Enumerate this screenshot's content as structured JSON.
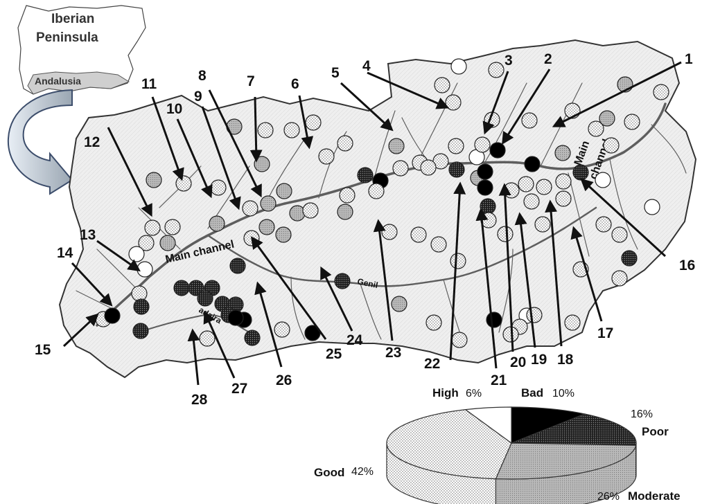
{
  "inset": {
    "title_line1": "Iberian",
    "title_line2": "Peninsula",
    "region": "Andalusia"
  },
  "map_labels": {
    "main_channel_left": "Main channel",
    "main_channel_right_line1": "Main",
    "main_channel_right_line2": "channel",
    "genil": "Genil",
    "guadaira": "adaira"
  },
  "site_numbers": [
    "1",
    "2",
    "3",
    "4",
    "5",
    "6",
    "7",
    "8",
    "9",
    "10",
    "11",
    "12",
    "13",
    "14",
    "15",
    "16",
    "17",
    "18",
    "19",
    "20",
    "21",
    "22",
    "23",
    "24",
    "25",
    "26",
    "27",
    "28"
  ],
  "colors": {
    "high": "#ffffff",
    "good": "#e6e6e6",
    "moderate": "#a8a8a8",
    "poor": "#3a3a3a",
    "bad": "#000000",
    "basin_fill": "#ededed",
    "river": "#6a6a6a"
  },
  "chart_data": {
    "type": "pie",
    "style": "3d",
    "slices": [
      {
        "name": "Bad",
        "value": 10,
        "label": "10%",
        "color": "#000000"
      },
      {
        "name": "Poor",
        "value": 16,
        "label": "16%",
        "color": "#3a3a3a"
      },
      {
        "name": "Moderate",
        "value": 26,
        "label": "26%",
        "color": "#a8a8a8"
      },
      {
        "name": "Good",
        "value": 42,
        "label": "42%",
        "color": "#e6e6e6"
      },
      {
        "name": "High",
        "value": 6,
        "label": "6%",
        "color": "#ffffff"
      }
    ]
  }
}
